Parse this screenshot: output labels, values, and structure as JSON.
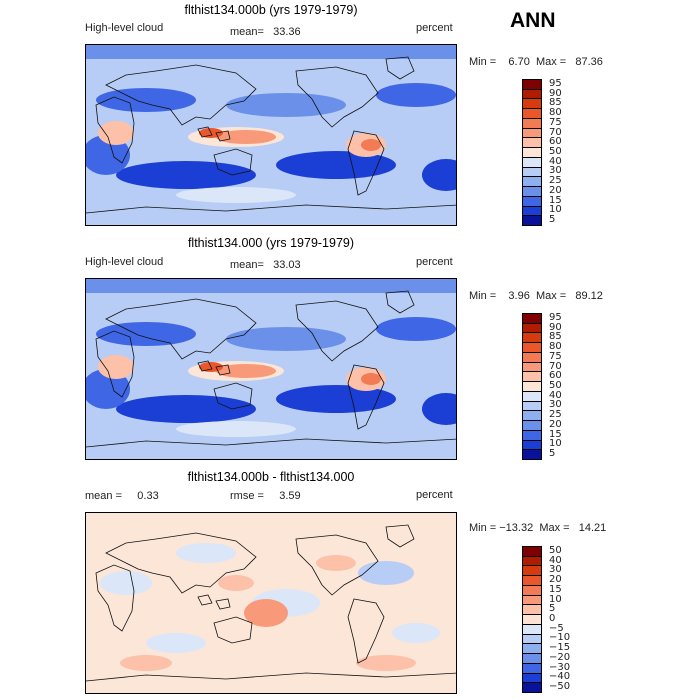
{
  "season": "ANN",
  "chart_data": [
    {
      "type": "heatmap",
      "title": "flthist134.000b (yrs 1979-1979)",
      "left_label": "High-level cloud",
      "center_label": "mean=   33.36",
      "right_label": "percent",
      "minmax_label": "Min =    6.70  Max =   87.36",
      "mean": 33.36,
      "min": 6.7,
      "max": 87.36,
      "colorbar_labels": [
        "95",
        "90",
        "85",
        "80",
        "75",
        "70",
        "60",
        "50",
        "40",
        "30",
        "25",
        "20",
        "15",
        "10",
        "5"
      ],
      "colorbar_colors": [
        "#7f0000",
        "#b01c00",
        "#d63b10",
        "#e9572b",
        "#f27a55",
        "#f89a7a",
        "#fcc1a8",
        "#fbe6d8",
        "#dbe6f8",
        "#b7cdf5",
        "#8fb0ee",
        "#6b90ea",
        "#3f66e4",
        "#1b3fd4",
        "#08129a"
      ]
    },
    {
      "type": "heatmap",
      "title": "flthist134.000 (yrs 1979-1979)",
      "left_label": "High-level cloud",
      "center_label": "mean=   33.03",
      "right_label": "percent",
      "minmax_label": "Min =    3.96  Max =   89.12",
      "mean": 33.03,
      "min": 3.96,
      "max": 89.12,
      "colorbar_labels": [
        "95",
        "90",
        "85",
        "80",
        "75",
        "70",
        "60",
        "50",
        "40",
        "30",
        "25",
        "20",
        "15",
        "10",
        "5"
      ],
      "colorbar_colors": [
        "#7f0000",
        "#b01c00",
        "#d63b10",
        "#e9572b",
        "#f27a55",
        "#f89a7a",
        "#fcc1a8",
        "#fbe6d8",
        "#dbe6f8",
        "#b7cdf5",
        "#8fb0ee",
        "#6b90ea",
        "#3f66e4",
        "#1b3fd4",
        "#08129a"
      ]
    },
    {
      "type": "heatmap",
      "title": "flthist134.000b - flthist134.000",
      "left_label": "mean =     0.33",
      "center_label": "rmse =     3.59",
      "right_label": "percent",
      "minmax_label": "Min = −13.32  Max =   14.21",
      "mean": 0.33,
      "rmse": 3.59,
      "min": -13.32,
      "max": 14.21,
      "colorbar_labels": [
        "50",
        "40",
        "30",
        "20",
        "15",
        "10",
        "5",
        "0",
        "−5",
        "−10",
        "−15",
        "−20",
        "−30",
        "−40",
        "−50"
      ],
      "colorbar_colors": [
        "#7f0000",
        "#b01c00",
        "#d63b10",
        "#e9572b",
        "#f27a55",
        "#f89a7a",
        "#fcc1a8",
        "#fde3d3",
        "#dbe6f8",
        "#b7cdf5",
        "#8fb0ee",
        "#6b90ea",
        "#3f66e4",
        "#1b3fd4",
        "#08129a"
      ]
    }
  ]
}
